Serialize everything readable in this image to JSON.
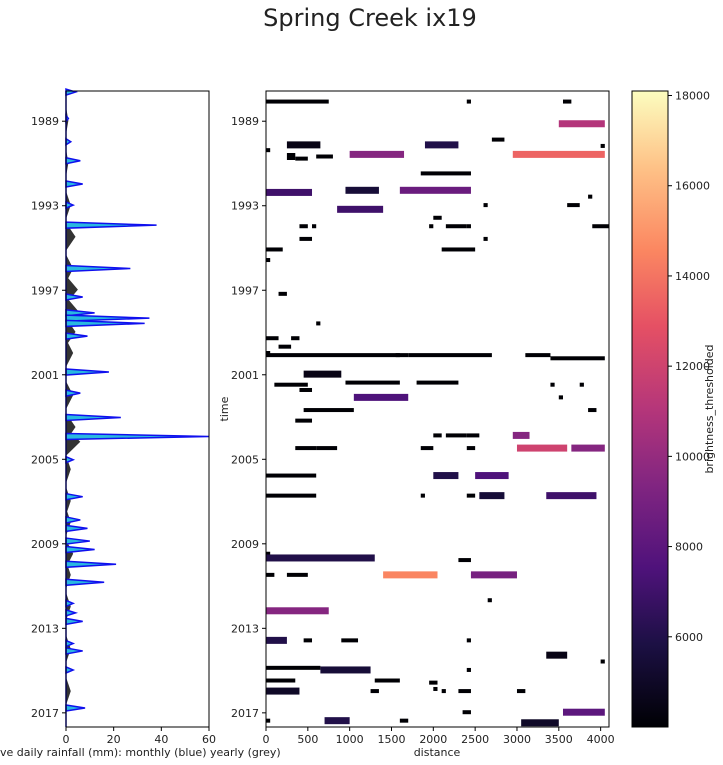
{
  "title": "Spring Creek ix19",
  "chart_data": [
    {
      "type": "area",
      "title": "",
      "xlabel": "ave daily rainfall (mm): monthly (blue) yearly (grey)",
      "ylabel": "",
      "xlim": [
        0,
        60
      ],
      "ylim_years": [
        1987.6,
        2017.7
      ],
      "x_ticks": [
        "0",
        "20",
        "40",
        "60"
      ],
      "y_ticks": [
        "1989",
        "1993",
        "1997",
        "2001",
        "2005",
        "2009",
        "2013",
        "2017"
      ],
      "colors": {
        "monthly_fill": "#29b8e0",
        "monthly_line": "#1010ee",
        "yearly_fill": "#333333"
      },
      "series": [
        {
          "name": "monthly",
          "points": [
            [
              1987.65,
              4
            ],
            [
              1988.9,
              1
            ],
            [
              1990,
              2
            ],
            [
              1990.9,
              6
            ],
            [
              1992,
              7
            ],
            [
              1993,
              3
            ],
            [
              1993.95,
              38
            ],
            [
              1996.0,
              27
            ],
            [
              1997.35,
              7
            ],
            [
              1998.1,
              12
            ],
            [
              1998.35,
              35
            ],
            [
              1998.6,
              33
            ],
            [
              1999.2,
              9
            ],
            [
              2000.9,
              18
            ],
            [
              2001.9,
              6
            ],
            [
              2003.05,
              23
            ],
            [
              2003.95,
              60
            ],
            [
              2005.05,
              3
            ],
            [
              2006.8,
              7
            ],
            [
              2007.9,
              6
            ],
            [
              2008.3,
              9
            ],
            [
              2008.9,
              10
            ],
            [
              2009.3,
              12
            ],
            [
              2010.0,
              21
            ],
            [
              2010.85,
              16
            ],
            [
              2011.85,
              3
            ],
            [
              2012.3,
              4
            ],
            [
              2012.7,
              7
            ],
            [
              2013.75,
              3
            ],
            [
              2014.1,
              7
            ],
            [
              2015.0,
              3
            ],
            [
              2016.8,
              8
            ]
          ]
        },
        {
          "name": "yearly",
          "points": [
            [
              1989.0,
              1
            ],
            [
              1991.0,
              1
            ],
            [
              1993.0,
              2
            ],
            [
              1994.5,
              4
            ],
            [
              1996.0,
              3
            ],
            [
              1997.0,
              5
            ],
            [
              1998.0,
              5
            ],
            [
              1999.0,
              4
            ],
            [
              2000.0,
              3
            ],
            [
              2002.0,
              3
            ],
            [
              2003.5,
              4
            ],
            [
              2004.2,
              6
            ],
            [
              2005.5,
              2
            ],
            [
              2007.0,
              2
            ],
            [
              2008.0,
              2
            ],
            [
              2009.5,
              3
            ],
            [
              2010.5,
              2
            ],
            [
              2012.0,
              2
            ],
            [
              2014.0,
              2
            ],
            [
              2016.0,
              2
            ]
          ]
        }
      ]
    },
    {
      "type": "heatmap",
      "title": "",
      "xlabel": "distance",
      "ylabel": "time",
      "xlim": [
        0,
        4100
      ],
      "ylim_years": [
        1987.6,
        2017.7
      ],
      "x_ticks": [
        "0",
        "500",
        "1000",
        "1500",
        "2000",
        "2500",
        "3000",
        "3500",
        "4000"
      ],
      "y_ticks": [
        "1989",
        "1993",
        "1997",
        "2001",
        "2005",
        "2009",
        "2013",
        "2017"
      ],
      "colorbar_label": "brightness_thresholded",
      "colorbar_range": [
        4000,
        18100
      ],
      "colorbar_ticks": [
        "6000",
        "8000",
        "10000",
        "12000",
        "14000",
        "16000",
        "18000"
      ],
      "segments": [
        [
          0,
          750,
          1988.1,
          1000
        ],
        [
          3550,
          3650,
          1988.1,
          2000
        ],
        [
          2400,
          2450,
          1988.1,
          1000
        ],
        [
          3500,
          4050,
          1989.15,
          11000
        ],
        [
          2700,
          2850,
          1989.9,
          1000
        ],
        [
          250,
          650,
          1990.15,
          4500
        ],
        [
          1900,
          2300,
          1990.15,
          6000
        ],
        [
          0,
          50,
          1990.4,
          1000
        ],
        [
          1000,
          1650,
          1990.6,
          9500
        ],
        [
          2950,
          4050,
          1990.6,
          13500
        ],
        [
          250,
          350,
          1990.7,
          3500
        ],
        [
          350,
          500,
          1990.8,
          2000
        ],
        [
          600,
          800,
          1990.7,
          1000
        ],
        [
          4000,
          4050,
          1990.2,
          1000
        ],
        [
          1850,
          2450,
          1991.5,
          1000
        ],
        [
          950,
          1350,
          1992.3,
          5500
        ],
        [
          1600,
          2450,
          1992.3,
          8500
        ],
        [
          0,
          550,
          1992.4,
          7000
        ],
        [
          3850,
          3900,
          1992.6,
          1000
        ],
        [
          2600,
          2650,
          1993.0,
          1000
        ],
        [
          3600,
          3750,
          1993.0,
          1000
        ],
        [
          850,
          1400,
          1993.2,
          7000
        ],
        [
          2000,
          2100,
          1993.6,
          1000
        ],
        [
          400,
          500,
          1994.0,
          1000
        ],
        [
          550,
          600,
          1994.0,
          1000
        ],
        [
          1950,
          2000,
          1994.0,
          1000
        ],
        [
          2150,
          2400,
          1994.0,
          1000
        ],
        [
          2400,
          2450,
          1994.0,
          1000
        ],
        [
          3900,
          4100,
          1994.0,
          1000
        ],
        [
          400,
          550,
          1994.6,
          1000
        ],
        [
          2600,
          2650,
          1994.6,
          1000
        ],
        [
          0,
          200,
          1995.1,
          1000
        ],
        [
          2100,
          2500,
          1995.1,
          1000
        ],
        [
          0,
          50,
          1995.6,
          1000
        ],
        [
          150,
          250,
          1997.2,
          1000
        ],
        [
          0,
          150,
          1999.3,
          1000
        ],
        [
          150,
          300,
          1999.7,
          1000
        ],
        [
          300,
          400,
          1999.3,
          1000
        ],
        [
          600,
          650,
          1998.6,
          1000
        ],
        [
          0,
          50,
          2000.0,
          1000
        ],
        [
          0,
          1600,
          2000.1,
          1000
        ],
        [
          1550,
          1700,
          2000.1,
          1000
        ],
        [
          1700,
          2700,
          2000.1,
          1000
        ],
        [
          3100,
          3400,
          2000.1,
          1000
        ],
        [
          3400,
          4050,
          2000.25,
          1000
        ],
        [
          450,
          900,
          2001.0,
          4500
        ],
        [
          100,
          500,
          2001.5,
          1000
        ],
        [
          950,
          1600,
          2001.4,
          1000
        ],
        [
          1800,
          2300,
          2001.4,
          1000
        ],
        [
          3400,
          3450,
          2001.5,
          1000
        ],
        [
          3750,
          3800,
          2001.5,
          1000
        ],
        [
          1050,
          1700,
          2002.1,
          7500
        ],
        [
          400,
          550,
          2001.75,
          1000
        ],
        [
          450,
          1050,
          2002.7,
          1000
        ],
        [
          3500,
          3550,
          2002.1,
          1000
        ],
        [
          3850,
          3950,
          2002.7,
          1000
        ],
        [
          350,
          550,
          2003.2,
          1000
        ],
        [
          2150,
          2400,
          2003.9,
          1000
        ],
        [
          2000,
          2100,
          2003.9,
          1000
        ],
        [
          2950,
          3150,
          2003.9,
          9500
        ],
        [
          2400,
          2550,
          2003.9,
          1000
        ],
        [
          350,
          600,
          2004.5,
          1000
        ],
        [
          600,
          850,
          2004.5,
          1000
        ],
        [
          1850,
          2000,
          2004.5,
          1000
        ],
        [
          2400,
          2500,
          2004.5,
          1000
        ],
        [
          3000,
          3600,
          2004.5,
          12000
        ],
        [
          3650,
          4050,
          2004.5,
          9500
        ],
        [
          0,
          600,
          2005.8,
          3000
        ],
        [
          2000,
          2300,
          2005.8,
          6000
        ],
        [
          2500,
          2900,
          2005.8,
          7500
        ],
        [
          0,
          600,
          2006.75,
          1000
        ],
        [
          1850,
          1900,
          2006.75,
          1000
        ],
        [
          2400,
          2500,
          2006.75,
          1000
        ],
        [
          2550,
          2850,
          2006.75,
          5500
        ],
        [
          3350,
          3950,
          2006.75,
          7000
        ],
        [
          0,
          50,
          2009.5,
          1000
        ],
        [
          0,
          1300,
          2009.7,
          6000
        ],
        [
          0,
          100,
          2010.5,
          1000
        ],
        [
          250,
          500,
          2010.5,
          1000
        ],
        [
          1400,
          2050,
          2010.5,
          14500
        ],
        [
          2450,
          2550,
          2010.5,
          1000
        ],
        [
          2450,
          3000,
          2010.5,
          9000
        ],
        [
          2300,
          2450,
          2009.8,
          1000
        ],
        [
          0,
          750,
          2012.2,
          9500
        ],
        [
          2650,
          2700,
          2011.7,
          1000
        ],
        [
          0,
          250,
          2013.6,
          6000
        ],
        [
          450,
          550,
          2013.6,
          1000
        ],
        [
          900,
          1100,
          2013.6,
          1000
        ],
        [
          2400,
          2450,
          2013.6,
          1000
        ],
        [
          3350,
          3600,
          2014.3,
          4500
        ],
        [
          4000,
          4050,
          2014.6,
          1000
        ],
        [
          0,
          650,
          2014.9,
          1000
        ],
        [
          650,
          1250,
          2015.0,
          5500
        ],
        [
          2400,
          2450,
          2015.0,
          1000
        ],
        [
          0,
          350,
          2015.5,
          1000
        ],
        [
          1300,
          1600,
          2015.5,
          1000
        ],
        [
          1950,
          2050,
          2015.6,
          1000
        ],
        [
          2000,
          2050,
          2015.9,
          1000
        ],
        [
          0,
          400,
          2016.0,
          5000
        ],
        [
          1250,
          1350,
          2016.0,
          1000
        ],
        [
          2100,
          2150,
          2016.0,
          1000
        ],
        [
          2300,
          2450,
          2016.0,
          1000
        ],
        [
          3000,
          3100,
          2016.0,
          1000
        ],
        [
          3550,
          4050,
          2017.0,
          8000
        ],
        [
          3050,
          3500,
          2017.5,
          5000
        ],
        [
          700,
          1000,
          2017.4,
          6000
        ],
        [
          1600,
          1700,
          2017.4,
          1000
        ],
        [
          0,
          50,
          2017.4,
          1000
        ],
        [
          2350,
          2450,
          2017.0,
          1000
        ]
      ]
    }
  ]
}
